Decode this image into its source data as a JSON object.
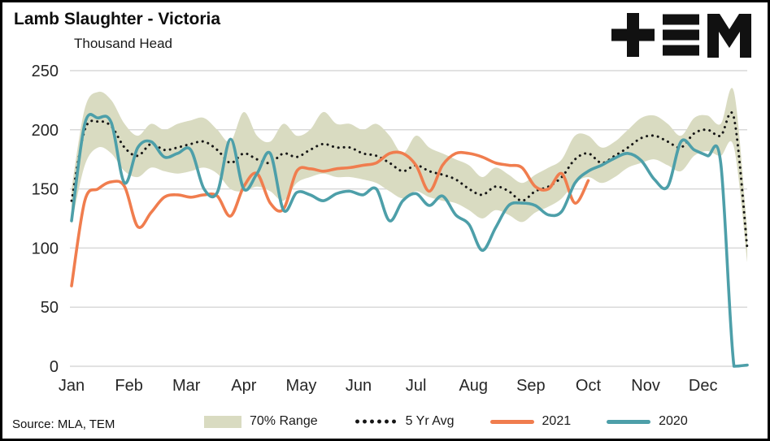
{
  "header": {
    "title": "Lamb Slaughter - Victoria",
    "subtitle": "Thousand Head"
  },
  "logo": {
    "alt": "TEM"
  },
  "source": "Source: MLA, TEM",
  "colors": {
    "band": "#d9dbc1",
    "grid": "#d9d9d9",
    "avg": "#161616",
    "y2021": "#f07d4e",
    "y2020": "#4d9fa9"
  },
  "legend": [
    {
      "label": "70% Range",
      "type": "band"
    },
    {
      "label": "5 Yr Avg",
      "type": "dotted"
    },
    {
      "label": "2021",
      "type": "line"
    },
    {
      "label": "2020",
      "type": "line"
    }
  ],
  "chart_data": {
    "type": "line",
    "title": "Lamb Slaughter - Victoria",
    "ylabel": "Thousand Head",
    "ylim": [
      0,
      250
    ],
    "yticks": [
      0,
      50,
      100,
      150,
      200,
      250
    ],
    "weeks_per_year": 52,
    "x_tick_labels": [
      "Jan",
      "Feb",
      "Mar",
      "Apr",
      "May",
      "Jun",
      "Jul",
      "Aug",
      "Sep",
      "Oct",
      "Nov",
      "Dec"
    ],
    "grid": "horizontal",
    "legend_position": "bottom",
    "band_70pct": {
      "name": "70% Range",
      "upper": [
        150,
        218,
        232,
        225,
        205,
        195,
        205,
        200,
        205,
        208,
        210,
        200,
        190,
        215,
        195,
        190,
        205,
        195,
        200,
        215,
        205,
        205,
        200,
        205,
        195,
        180,
        195,
        185,
        180,
        175,
        170,
        160,
        168,
        162,
        155,
        162,
        168,
        175,
        195,
        195,
        185,
        190,
        200,
        210,
        212,
        205,
        195,
        210,
        212,
        205,
        232,
        115
      ],
      "lower": [
        120,
        170,
        185,
        180,
        165,
        160,
        168,
        165,
        163,
        165,
        168,
        163,
        150,
        148,
        152,
        148,
        140,
        155,
        160,
        163,
        160,
        160,
        158,
        155,
        148,
        142,
        148,
        143,
        140,
        138,
        132,
        125,
        132,
        128,
        122,
        130,
        135,
        142,
        155,
        160,
        155,
        160,
        168,
        172,
        175,
        170,
        165,
        178,
        182,
        178,
        185,
        88
      ]
    },
    "series": [
      {
        "name": "5 Yr Avg",
        "style": "dotted",
        "color": "#161616",
        "values": [
          140,
          200,
          207,
          203,
          185,
          178,
          188,
          183,
          185,
          188,
          190,
          183,
          172,
          180,
          175,
          172,
          180,
          177,
          183,
          188,
          185,
          185,
          180,
          178,
          172,
          165,
          170,
          165,
          162,
          158,
          150,
          145,
          152,
          148,
          140,
          148,
          152,
          160,
          175,
          180,
          172,
          178,
          185,
          193,
          195,
          190,
          185,
          197,
          200,
          195,
          210,
          100
        ]
      },
      {
        "name": "2021",
        "style": "solid",
        "color": "#f07d4e",
        "values": [
          68,
          140,
          150,
          156,
          152,
          118,
          130,
          143,
          145,
          143,
          145,
          144,
          127,
          152,
          163,
          138,
          133,
          165,
          167,
          165,
          167,
          168,
          170,
          172,
          180,
          180,
          170,
          148,
          170,
          180,
          180,
          177,
          172,
          170,
          168,
          152,
          150,
          163,
          138,
          157
        ]
      },
      {
        "name": "2020",
        "style": "solid",
        "color": "#4d9fa9",
        "values": [
          123,
          205,
          210,
          206,
          155,
          185,
          190,
          177,
          180,
          183,
          150,
          147,
          192,
          150,
          163,
          180,
          132,
          147,
          145,
          140,
          146,
          148,
          145,
          150,
          123,
          140,
          146,
          136,
          144,
          128,
          120,
          98,
          117,
          136,
          138,
          136,
          128,
          131,
          155,
          165,
          170,
          176,
          180,
          174,
          158,
          152,
          190,
          183,
          178,
          172,
          0,
          1
        ]
      }
    ]
  }
}
